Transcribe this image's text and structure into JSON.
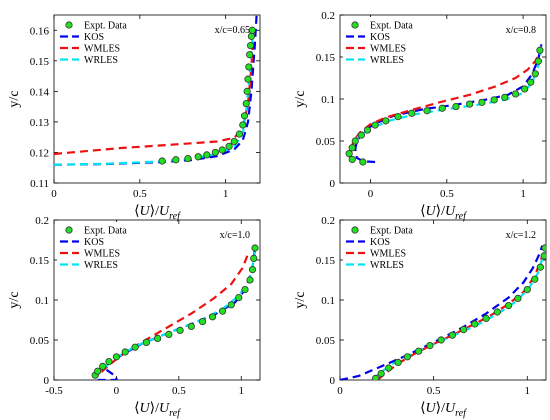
{
  "colors": {
    "expt_fill": "#22e022",
    "expt_edge": "#333333",
    "KOS": "#0000ee",
    "WMLES": "#ee1111",
    "WRLES": "#00e5ee"
  },
  "chart_data": [
    {
      "type": "line",
      "annotation": "x/c=0.65",
      "xlabel": "⟨U⟩/U_ref",
      "ylabel": "y/c",
      "xlim": [
        0,
        1.2
      ],
      "ylim": [
        0.11,
        0.165
      ],
      "xticks": [
        0,
        0.5,
        1
      ],
      "yticks": [
        0.11,
        0.12,
        0.13,
        0.14,
        0.15,
        0.16
      ],
      "xtick_labels": [
        "0",
        "0.5",
        "1"
      ],
      "ytick_labels": [
        "0.11",
        "0.12",
        "0.13",
        "0.14",
        "0.15",
        "0.16"
      ],
      "legend_position": "top-left",
      "series": [
        {
          "name": "Expt. Data",
          "style": "marker",
          "x": [
            0.63,
            0.71,
            0.78,
            0.84,
            0.89,
            0.94,
            0.98,
            1.02,
            1.05,
            1.08,
            1.1,
            1.11,
            1.12,
            1.125,
            1.13,
            1.135,
            1.14,
            1.145,
            1.15,
            1.155
          ],
          "y": [
            0.1172,
            0.1176,
            0.118,
            0.1186,
            0.1192,
            0.12,
            0.1208,
            0.122,
            0.1236,
            0.126,
            0.129,
            0.132,
            0.136,
            0.14,
            0.144,
            0.148,
            0.152,
            0.155,
            0.158,
            0.16
          ]
        },
        {
          "name": "KOS",
          "style": "dash",
          "x": [
            0,
            0.3,
            0.6,
            0.8,
            0.95,
            1.05,
            1.1,
            1.13,
            1.15,
            1.17,
            1.18
          ],
          "y": [
            0.116,
            0.1162,
            0.1168,
            0.1175,
            0.1188,
            0.121,
            0.124,
            0.13,
            0.14,
            0.155,
            0.165
          ]
        },
        {
          "name": "WMLES",
          "style": "dash",
          "x": [
            0,
            0.2,
            0.4,
            0.6,
            0.8,
            0.95,
            1.05,
            1.1,
            1.13,
            1.15,
            1.16
          ],
          "y": [
            0.1195,
            0.1205,
            0.1215,
            0.1222,
            0.123,
            0.1236,
            0.1248,
            0.128,
            0.136,
            0.148,
            0.158
          ]
        },
        {
          "name": "WRLES",
          "style": "dash",
          "x": [
            0,
            0.3,
            0.6,
            0.8,
            0.95,
            1.05,
            1.1,
            1.12,
            1.14,
            1.16
          ],
          "y": [
            0.116,
            0.1163,
            0.117,
            0.118,
            0.1195,
            0.122,
            0.126,
            0.134,
            0.146,
            0.16
          ]
        }
      ]
    },
    {
      "type": "line",
      "annotation": "x/c=0.8",
      "xlabel": "⟨U⟩/U_ref",
      "ylabel": "y/c",
      "xlim": [
        -0.2,
        1.15
      ],
      "ylim": [
        0,
        0.2
      ],
      "xticks": [
        0,
        0.5,
        1
      ],
      "yticks": [
        0,
        0.05,
        0.1,
        0.15,
        0.2
      ],
      "xtick_labels": [
        "0",
        "0.5",
        "1"
      ],
      "ytick_labels": [
        "0",
        "0.05",
        "0.1",
        "0.15",
        "0.2"
      ],
      "legend_position": "top-left",
      "series": [
        {
          "name": "Expt. Data",
          "style": "marker",
          "x": [
            -0.05,
            -0.12,
            -0.14,
            -0.12,
            -0.1,
            -0.06,
            -0.02,
            0.03,
            0.1,
            0.18,
            0.27,
            0.37,
            0.47,
            0.56,
            0.65,
            0.73,
            0.81,
            0.88,
            0.95,
            1.01,
            1.05,
            1.08,
            1.1,
            1.11
          ],
          "y": [
            0.025,
            0.028,
            0.035,
            0.042,
            0.05,
            0.057,
            0.063,
            0.069,
            0.074,
            0.079,
            0.083,
            0.086,
            0.089,
            0.091,
            0.094,
            0.096,
            0.099,
            0.102,
            0.106,
            0.112,
            0.12,
            0.13,
            0.145,
            0.158
          ]
        },
        {
          "name": "KOS",
          "style": "dash",
          "x": [
            0.03,
            -0.05,
            -0.09,
            -0.1,
            -0.09,
            -0.05,
            0.02,
            0.15,
            0.35,
            0.55,
            0.75,
            0.9,
            1.0,
            1.06,
            1.1,
            1.12
          ],
          "y": [
            0.025,
            0.026,
            0.03,
            0.04,
            0.05,
            0.06,
            0.07,
            0.08,
            0.088,
            0.093,
            0.099,
            0.105,
            0.115,
            0.13,
            0.148,
            0.165
          ]
        },
        {
          "name": "WMLES",
          "style": "dash",
          "x": [
            -0.13,
            -0.11,
            -0.07,
            0.0,
            0.1,
            0.25,
            0.45,
            0.65,
            0.82,
            0.95,
            1.03,
            1.08,
            1.11
          ],
          "y": [
            0.04,
            0.05,
            0.06,
            0.07,
            0.078,
            0.086,
            0.096,
            0.105,
            0.115,
            0.125,
            0.135,
            0.145,
            0.155
          ]
        },
        {
          "name": "WRLES",
          "style": "dash",
          "x": [
            -0.14,
            -0.12,
            -0.08,
            0.0,
            0.12,
            0.3,
            0.5,
            0.7,
            0.88,
            1.0,
            1.06,
            1.1,
            1.12
          ],
          "y": [
            0.035,
            0.045,
            0.055,
            0.065,
            0.074,
            0.082,
            0.088,
            0.093,
            0.099,
            0.107,
            0.12,
            0.14,
            0.16
          ]
        }
      ]
    },
    {
      "type": "line",
      "annotation": "x/c=1.0",
      "xlabel": "⟨U⟩/U_ref",
      "ylabel": "y/c",
      "xlim": [
        -0.5,
        1.15
      ],
      "ylim": [
        0,
        0.2
      ],
      "xticks": [
        -0.5,
        0,
        0.5,
        1
      ],
      "yticks": [
        0,
        0.05,
        0.1,
        0.15,
        0.2
      ],
      "xtick_labels": [
        "-0.5",
        "0",
        "0.5",
        "1"
      ],
      "ytick_labels": [
        "0",
        "0.05",
        "0.1",
        "0.15",
        "0.2"
      ],
      "legend_position": "top-left",
      "series": [
        {
          "name": "Expt. Data",
          "style": "marker",
          "x": [
            -0.17,
            -0.15,
            -0.11,
            -0.06,
            0.0,
            0.07,
            0.15,
            0.24,
            0.33,
            0.42,
            0.51,
            0.6,
            0.69,
            0.77,
            0.85,
            0.92,
            0.98,
            1.03,
            1.07,
            1.09,
            1.1,
            1.11
          ],
          "y": [
            0.006,
            0.011,
            0.017,
            0.023,
            0.029,
            0.035,
            0.041,
            0.047,
            0.052,
            0.057,
            0.062,
            0.067,
            0.073,
            0.079,
            0.086,
            0.094,
            0.103,
            0.113,
            0.125,
            0.138,
            0.152,
            0.165
          ]
        },
        {
          "name": "KOS",
          "style": "dash",
          "x": [
            -0.15,
            0.0,
            0.0,
            -0.1,
            -0.05,
            0.05,
            0.2,
            0.4,
            0.6,
            0.8,
            0.95,
            1.04,
            1.09,
            1.11
          ],
          "y": [
            0.0,
            0.0,
            0.004,
            0.015,
            0.022,
            0.032,
            0.045,
            0.058,
            0.07,
            0.083,
            0.097,
            0.115,
            0.14,
            0.165
          ]
        },
        {
          "name": "WMLES",
          "style": "dash",
          "x": [
            -0.12,
            -0.05,
            0.05,
            0.2,
            0.4,
            0.6,
            0.78,
            0.92,
            1.01,
            1.06
          ],
          "y": [
            0.01,
            0.02,
            0.032,
            0.047,
            0.065,
            0.083,
            0.102,
            0.12,
            0.14,
            0.16
          ]
        },
        {
          "name": "WRLES",
          "style": "dash",
          "x": [
            -0.17,
            -0.1,
            0.0,
            0.15,
            0.35,
            0.55,
            0.72,
            0.86,
            0.97,
            1.05,
            1.09,
            1.11
          ],
          "y": [
            0.005,
            0.015,
            0.028,
            0.042,
            0.055,
            0.067,
            0.078,
            0.09,
            0.104,
            0.12,
            0.14,
            0.16
          ]
        }
      ]
    },
    {
      "type": "line",
      "annotation": "x/c=1.2",
      "xlabel": "⟨U⟩/U_ref",
      "ylabel": "y/c",
      "xlim": [
        0,
        1.1
      ],
      "ylim": [
        0,
        0.2
      ],
      "xticks": [
        0,
        0.5,
        1
      ],
      "yticks": [
        0,
        0.05,
        0.1,
        0.15,
        0.2
      ],
      "xtick_labels": [
        "0",
        "0.5",
        "1"
      ],
      "ytick_labels": [
        "0",
        "0.05",
        "0.1",
        "0.15",
        "0.2"
      ],
      "legend_position": "top-left",
      "series": [
        {
          "name": "Expt. Data",
          "style": "marker",
          "x": [
            0.19,
            0.22,
            0.26,
            0.31,
            0.36,
            0.42,
            0.48,
            0.54,
            0.6,
            0.66,
            0.72,
            0.78,
            0.84,
            0.9,
            0.95,
            1.0,
            1.04,
            1.07,
            1.09,
            1.095
          ],
          "y": [
            0.002,
            0.008,
            0.015,
            0.022,
            0.029,
            0.036,
            0.043,
            0.05,
            0.056,
            0.063,
            0.07,
            0.077,
            0.085,
            0.093,
            0.102,
            0.113,
            0.126,
            0.141,
            0.155,
            0.165
          ]
        },
        {
          "name": "KOS",
          "style": "dash",
          "x": [
            0.0,
            0.1,
            0.2,
            0.35,
            0.5,
            0.65,
            0.78,
            0.9,
            0.98,
            1.03,
            1.06,
            1.08
          ],
          "y": [
            0.0,
            0.005,
            0.015,
            0.03,
            0.047,
            0.065,
            0.083,
            0.103,
            0.122,
            0.14,
            0.155,
            0.168
          ]
        },
        {
          "name": "WMLES",
          "style": "dash",
          "x": [
            0.2,
            0.25,
            0.32,
            0.4,
            0.5,
            0.6,
            0.7,
            0.8,
            0.9,
            0.98,
            1.04,
            1.08
          ],
          "y": [
            0.0,
            0.01,
            0.022,
            0.033,
            0.045,
            0.056,
            0.068,
            0.08,
            0.095,
            0.11,
            0.13,
            0.155
          ]
        },
        {
          "name": "WRLES",
          "style": "dash",
          "x": [
            0.17,
            0.22,
            0.28,
            0.36,
            0.45,
            0.55,
            0.65,
            0.75,
            0.85,
            0.94,
            1.01,
            1.06,
            1.09
          ],
          "y": [
            0.0,
            0.01,
            0.02,
            0.03,
            0.04,
            0.05,
            0.06,
            0.071,
            0.084,
            0.098,
            0.115,
            0.135,
            0.16
          ]
        }
      ]
    }
  ]
}
